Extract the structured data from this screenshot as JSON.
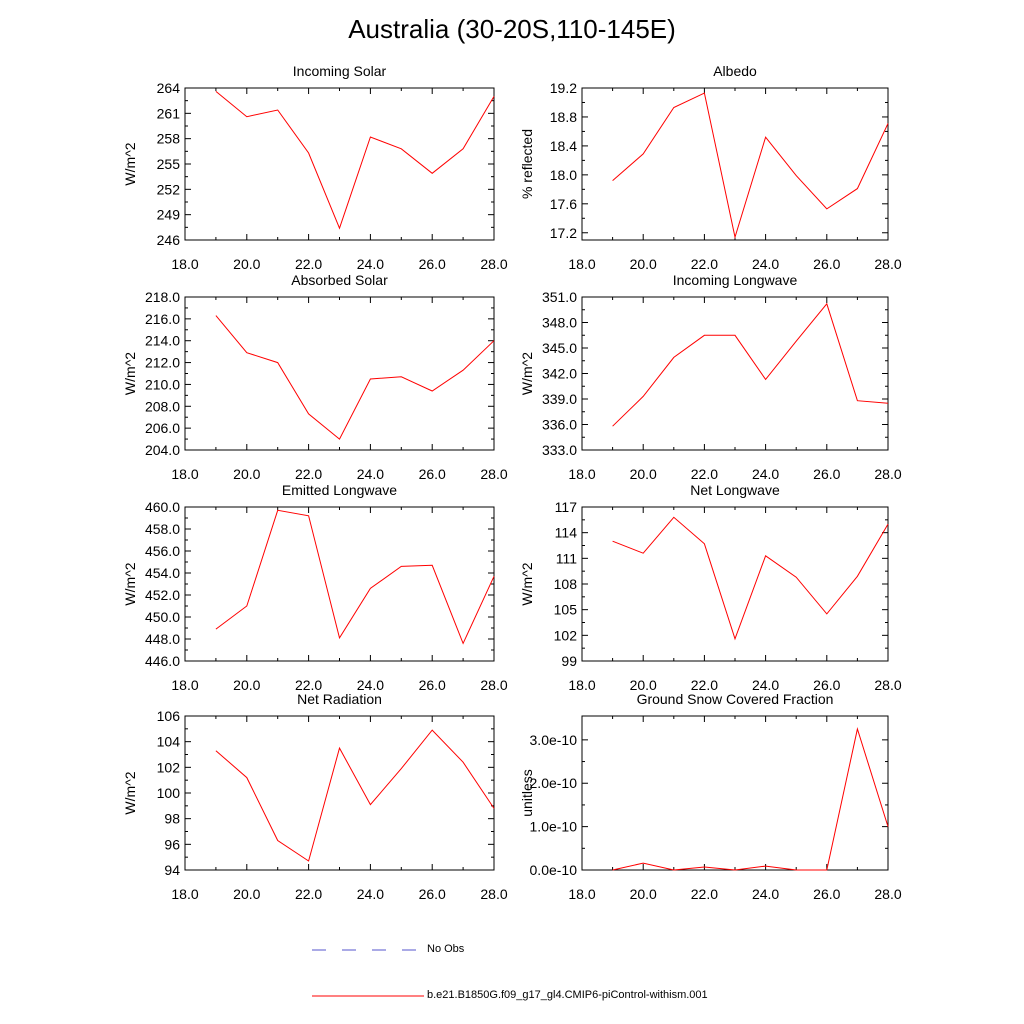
{
  "title": "Australia (30-20S,110-145E)",
  "legend": {
    "obs_label": "No Obs",
    "obs_color": "#5555cc",
    "model_label": "b.e21.B1850G.f09_g17_gl4.CMIP6-piControl-withism.001",
    "model_color": "#ff0000"
  },
  "chart_data": [
    {
      "type": "line",
      "title": "Incoming Solar",
      "ylabel": "W/m^2",
      "x": [
        19,
        20,
        21,
        22,
        23,
        24,
        25,
        26,
        27,
        28
      ],
      "xlim": [
        18,
        28
      ],
      "xticks": [
        "18.0",
        "20.0",
        "22.0",
        "24.0",
        "26.0",
        "28.0"
      ],
      "ylim": [
        246,
        264
      ],
      "yticks": [
        "246",
        "249",
        "252",
        "255",
        "258",
        "261",
        "264"
      ],
      "series": [
        {
          "values": [
            263.6,
            260.6,
            261.4,
            256.3,
            247.4,
            258.2,
            256.8,
            253.9,
            256.8,
            263.0
          ]
        }
      ]
    },
    {
      "type": "line",
      "title": "Albedo",
      "ylabel": "% reflected",
      "x": [
        19,
        20,
        21,
        22,
        23,
        24,
        25,
        26,
        27,
        28
      ],
      "xlim": [
        18,
        28
      ],
      "xticks": [
        "18.0",
        "20.0",
        "22.0",
        "24.0",
        "26.0",
        "28.0"
      ],
      "ylim": [
        17.1,
        19.2
      ],
      "yticks": [
        "17.2",
        "17.6",
        "18.0",
        "18.4",
        "18.8",
        "19.2"
      ],
      "series": [
        {
          "values": [
            17.92,
            18.29,
            18.93,
            19.13,
            17.14,
            18.52,
            17.99,
            17.53,
            17.81,
            18.71
          ]
        }
      ]
    },
    {
      "type": "line",
      "title": "Absorbed Solar",
      "ylabel": "W/m^2",
      "x": [
        19,
        20,
        21,
        22,
        23,
        24,
        25,
        26,
        27,
        28
      ],
      "xlim": [
        18,
        28
      ],
      "xticks": [
        "18.0",
        "20.0",
        "22.0",
        "24.0",
        "26.0",
        "28.0"
      ],
      "ylim": [
        204,
        218
      ],
      "yticks": [
        "204.0",
        "206.0",
        "208.0",
        "210.0",
        "212.0",
        "214.0",
        "216.0",
        "218.0"
      ],
      "series": [
        {
          "values": [
            216.3,
            212.9,
            212.0,
            207.3,
            205.0,
            210.5,
            210.7,
            209.4,
            211.3,
            214.0
          ]
        }
      ]
    },
    {
      "type": "line",
      "title": "Incoming Longwave",
      "ylabel": "W/m^2",
      "x": [
        19,
        20,
        21,
        22,
        23,
        24,
        25,
        26,
        27,
        28
      ],
      "xlim": [
        18,
        28
      ],
      "xticks": [
        "18.0",
        "20.0",
        "22.0",
        "24.0",
        "26.0",
        "28.0"
      ],
      "ylim": [
        333,
        351
      ],
      "yticks": [
        "333.0",
        "336.0",
        "339.0",
        "342.0",
        "345.0",
        "348.0",
        "351.0"
      ],
      "series": [
        {
          "values": [
            335.8,
            339.3,
            343.9,
            346.5,
            346.5,
            341.3,
            345.8,
            350.2,
            338.8,
            338.5
          ]
        }
      ]
    },
    {
      "type": "line",
      "title": "Emitted Longwave",
      "ylabel": "W/m^2",
      "x": [
        19,
        20,
        21,
        22,
        23,
        24,
        25,
        26,
        27,
        28
      ],
      "xlim": [
        18,
        28
      ],
      "xticks": [
        "18.0",
        "20.0",
        "22.0",
        "24.0",
        "26.0",
        "28.0"
      ],
      "ylim": [
        446,
        460
      ],
      "yticks": [
        "446.0",
        "448.0",
        "450.0",
        "452.0",
        "454.0",
        "456.0",
        "458.0",
        "460.0"
      ],
      "series": [
        {
          "values": [
            448.9,
            451.0,
            459.7,
            459.2,
            448.1,
            452.6,
            454.6,
            454.7,
            447.6,
            453.7
          ]
        }
      ]
    },
    {
      "type": "line",
      "title": "Net Longwave",
      "ylabel": "W/m^2",
      "x": [
        19,
        20,
        21,
        22,
        23,
        24,
        25,
        26,
        27,
        28
      ],
      "xlim": [
        18,
        28
      ],
      "xticks": [
        "18.0",
        "20.0",
        "22.0",
        "24.0",
        "26.0",
        "28.0"
      ],
      "ylim": [
        99,
        117
      ],
      "yticks": [
        "99",
        "102",
        "105",
        "108",
        "111",
        "114",
        "117"
      ],
      "series": [
        {
          "values": [
            113.0,
            111.6,
            115.8,
            112.7,
            101.6,
            111.3,
            108.8,
            104.5,
            108.9,
            115.0
          ]
        }
      ]
    },
    {
      "type": "line",
      "title": "Net Radiation",
      "ylabel": "W/m^2",
      "x": [
        19,
        20,
        21,
        22,
        23,
        24,
        25,
        26,
        27,
        28
      ],
      "xlim": [
        18,
        28
      ],
      "xticks": [
        "18.0",
        "20.0",
        "22.0",
        "24.0",
        "26.0",
        "28.0"
      ],
      "ylim": [
        94,
        106
      ],
      "yticks": [
        "94",
        "96",
        "98",
        "100",
        "102",
        "104",
        "106"
      ],
      "series": [
        {
          "values": [
            103.3,
            101.2,
            96.3,
            94.7,
            103.5,
            99.1,
            101.9,
            104.9,
            102.4,
            98.8
          ]
        }
      ]
    },
    {
      "type": "line",
      "title": "Ground Snow Covered Fraction",
      "ylabel": "unitless",
      "x": [
        19,
        20,
        21,
        22,
        23,
        24,
        25,
        26,
        27,
        28
      ],
      "xlim": [
        18,
        28
      ],
      "xticks": [
        "18.0",
        "20.0",
        "22.0",
        "24.0",
        "26.0",
        "28.0"
      ],
      "ylim": [
        0,
        3.55e-10
      ],
      "yticks": [
        "0.0e-10",
        "1.0e-10",
        "2.0e-10",
        "3.0e-10"
      ],
      "ytick_values": [
        0,
        1e-10,
        2e-10,
        3e-10
      ],
      "series": [
        {
          "values": [
            0,
            1.6e-11,
            0,
            7e-12,
            0,
            9e-12,
            0,
            0,
            3.25e-10,
            1e-10
          ]
        }
      ]
    }
  ]
}
